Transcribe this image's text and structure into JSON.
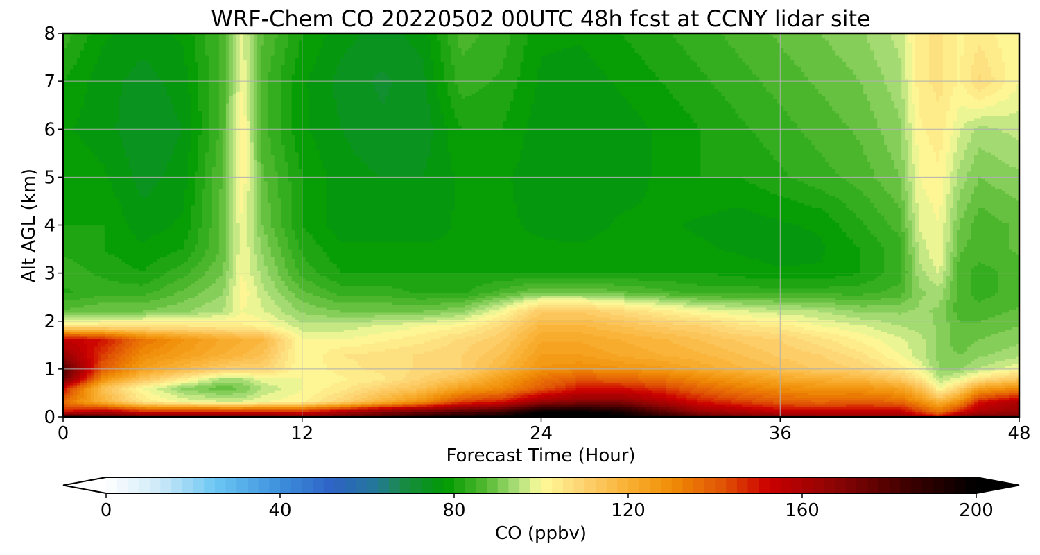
{
  "chart_data": {
    "type": "heatmap",
    "title": "WRF-Chem CO  20220502 00UTC 48h fcst at CCNY lidar site",
    "xlabel": "Forecast Time (Hour)",
    "ylabel": "Alt AGL (km)",
    "xlim": [
      0,
      48
    ],
    "ylim": [
      0,
      8
    ],
    "x_ticks": [
      "0",
      "12",
      "24",
      "36",
      "48"
    ],
    "y_ticks": [
      "0",
      "1",
      "2",
      "3",
      "4",
      "5",
      "6",
      "7",
      "8"
    ],
    "grid": true,
    "x_hours": [
      0,
      2,
      4,
      6,
      8,
      9,
      10,
      12,
      14,
      16,
      18,
      20,
      22,
      24,
      26,
      28,
      30,
      32,
      34,
      36,
      38,
      40,
      42,
      43,
      44,
      45,
      46,
      48
    ],
    "z_km": [
      0,
      0.1,
      0.3,
      0.6,
      0.8,
      1.0,
      1.3,
      1.6,
      1.9,
      2.2,
      2.6,
      3.0,
      3.5,
      4.0,
      5.0,
      6.0,
      7.0,
      8.0
    ],
    "co_ppbv": [
      [
        190,
        180,
        175,
        175,
        175,
        175,
        175,
        170,
        175,
        180,
        190,
        195,
        198,
        205,
        205,
        200,
        190,
        180,
        175,
        172,
        168,
        168,
        168,
        160,
        150,
        170,
        175,
        175
      ],
      [
        150,
        160,
        150,
        150,
        150,
        150,
        150,
        150,
        160,
        170,
        175,
        180,
        185,
        200,
        200,
        195,
        180,
        165,
        160,
        155,
        155,
        155,
        155,
        145,
        135,
        150,
        160,
        165
      ],
      [
        135,
        120,
        105,
        100,
        98,
        98,
        100,
        102,
        110,
        120,
        130,
        145,
        150,
        165,
        170,
        170,
        160,
        150,
        145,
        140,
        138,
        140,
        138,
        130,
        120,
        130,
        150,
        160
      ],
      [
        150,
        115,
        100,
        92,
        88,
        90,
        95,
        100,
        104,
        110,
        115,
        125,
        130,
        140,
        150,
        150,
        145,
        138,
        133,
        130,
        128,
        128,
        124,
        115,
        100,
        110,
        125,
        130
      ],
      [
        175,
        130,
        115,
        105,
        95,
        95,
        100,
        100,
        102,
        104,
        110,
        115,
        125,
        135,
        140,
        138,
        135,
        130,
        126,
        122,
        120,
        118,
        112,
        105,
        95,
        98,
        105,
        112
      ],
      [
        180,
        140,
        125,
        118,
        112,
        110,
        110,
        100,
        104,
        106,
        108,
        110,
        118,
        128,
        130,
        128,
        126,
        122,
        118,
        115,
        112,
        110,
        104,
        100,
        92,
        92,
        95,
        100
      ],
      [
        165,
        145,
        130,
        125,
        120,
        118,
        115,
        100,
        105,
        106,
        108,
        110,
        115,
        125,
        125,
        122,
        120,
        118,
        115,
        112,
        110,
        106,
        100,
        96,
        92,
        90,
        92,
        94
      ],
      [
        155,
        150,
        135,
        128,
        122,
        120,
        118,
        100,
        100,
        102,
        104,
        108,
        112,
        122,
        122,
        120,
        118,
        115,
        112,
        110,
        106,
        102,
        98,
        96,
        92,
        88,
        90,
        92
      ],
      [
        105,
        105,
        105,
        105,
        104,
        103,
        102,
        96,
        96,
        98,
        100,
        102,
        108,
        118,
        118,
        115,
        112,
        110,
        106,
        104,
        100,
        98,
        95,
        94,
        92,
        88,
        88,
        90
      ],
      [
        88,
        90,
        90,
        92,
        95,
        100,
        98,
        92,
        90,
        90,
        90,
        92,
        100,
        112,
        112,
        108,
        104,
        100,
        98,
        96,
        95,
        92,
        92,
        93,
        92,
        86,
        86,
        88
      ],
      [
        82,
        84,
        84,
        88,
        92,
        102,
        96,
        88,
        84,
        84,
        82,
        82,
        86,
        90,
        90,
        88,
        86,
        84,
        84,
        84,
        84,
        84,
        86,
        92,
        94,
        86,
        84,
        86
      ],
      [
        84,
        82,
        80,
        84,
        90,
        100,
        94,
        84,
        80,
        80,
        80,
        80,
        80,
        80,
        80,
        80,
        80,
        80,
        79,
        78,
        78,
        80,
        84,
        94,
        98,
        86,
        84,
        86
      ],
      [
        82,
        80,
        78,
        80,
        88,
        100,
        92,
        82,
        78,
        78,
        78,
        78,
        78,
        78,
        78,
        79,
        79,
        78,
        77,
        76,
        77,
        80,
        84,
        96,
        100,
        88,
        86,
        88
      ],
      [
        80,
        80,
        76,
        78,
        88,
        100,
        90,
        80,
        76,
        76,
        76,
        78,
        78,
        77,
        76,
        78,
        78,
        77,
        76,
        77,
        78,
        82,
        86,
        98,
        100,
        90,
        86,
        88
      ],
      [
        80,
        78,
        74,
        76,
        88,
        102,
        88,
        80,
        76,
        75,
        75,
        78,
        78,
        76,
        75,
        76,
        78,
        80,
        80,
        82,
        84,
        86,
        90,
        100,
        102,
        94,
        90,
        92
      ],
      [
        78,
        76,
        73,
        75,
        86,
        103,
        86,
        78,
        75,
        73,
        73,
        80,
        80,
        76,
        75,
        76,
        78,
        80,
        82,
        84,
        86,
        88,
        92,
        102,
        104,
        98,
        94,
        96
      ],
      [
        80,
        76,
        74,
        76,
        86,
        100,
        86,
        78,
        74,
        72,
        74,
        84,
        82,
        77,
        76,
        78,
        80,
        82,
        84,
        86,
        88,
        90,
        94,
        104,
        106,
        102,
        108,
        100
      ],
      [
        84,
        78,
        76,
        78,
        86,
        98,
        88,
        80,
        76,
        74,
        76,
        86,
        84,
        78,
        78,
        80,
        82,
        84,
        86,
        88,
        90,
        92,
        96,
        104,
        106,
        102,
        104,
        100
      ]
    ]
  },
  "colorbar": {
    "label": "CO  (ppbv)",
    "ticks": [
      "0",
      "40",
      "80",
      "120",
      "160",
      "200"
    ],
    "range": [
      0,
      200
    ],
    "step": 2.5,
    "extend": "both",
    "stops": [
      {
        "v": 0,
        "c": "#ffffff"
      },
      {
        "v": 12,
        "c": "#cfeaf8"
      },
      {
        "v": 25,
        "c": "#6cc8f4"
      },
      {
        "v": 40,
        "c": "#3d8fdc"
      },
      {
        "v": 52,
        "c": "#2e62c4"
      },
      {
        "v": 62,
        "c": "#23789a"
      },
      {
        "v": 68,
        "c": "#1a8a48"
      },
      {
        "v": 78,
        "c": "#009a00"
      },
      {
        "v": 87,
        "c": "#52b830"
      },
      {
        "v": 95,
        "c": "#b2e27e"
      },
      {
        "v": 100,
        "c": "#fefb9a"
      },
      {
        "v": 110,
        "c": "#fdd270"
      },
      {
        "v": 120,
        "c": "#f9b032"
      },
      {
        "v": 130,
        "c": "#f08c06"
      },
      {
        "v": 142,
        "c": "#e05204"
      },
      {
        "v": 152,
        "c": "#cc0000"
      },
      {
        "v": 168,
        "c": "#8a0404"
      },
      {
        "v": 184,
        "c": "#400000"
      },
      {
        "v": 200,
        "c": "#000000"
      }
    ]
  }
}
